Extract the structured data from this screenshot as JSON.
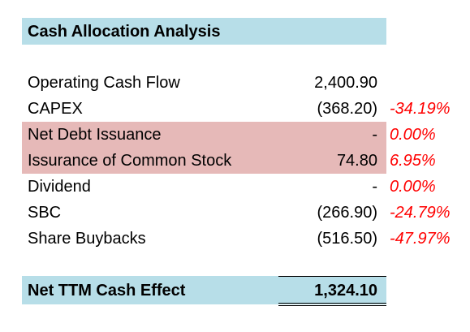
{
  "title": "Cash Allocation Analysis",
  "colors": {
    "header_fill": "#b7dee8",
    "highlight_fill": "#e6b9b8",
    "negative_pct": "#ff0000"
  },
  "rows": [
    {
      "label": "Operating Cash Flow",
      "value": "2,400.90",
      "pct": "",
      "highlighted": false
    },
    {
      "label": "CAPEX",
      "value": "(368.20)",
      "pct": "-34.19%",
      "highlighted": false
    },
    {
      "label": "Net Debt Issuance",
      "value": "-",
      "pct": "0.00%",
      "highlighted": true
    },
    {
      "label": "Issurance of Common Stock",
      "value": "74.80",
      "pct": "6.95%",
      "highlighted": true
    },
    {
      "label": "Dividend",
      "value": "-",
      "pct": "0.00%",
      "highlighted": false
    },
    {
      "label": "SBC",
      "value": "(266.90)",
      "pct": "-24.79%",
      "highlighted": false
    },
    {
      "label": "Share Buybacks",
      "value": "(516.50)",
      "pct": "-47.97%",
      "highlighted": false
    }
  ],
  "total": {
    "label": "Net TTM Cash Effect",
    "value": "1,324.10"
  }
}
